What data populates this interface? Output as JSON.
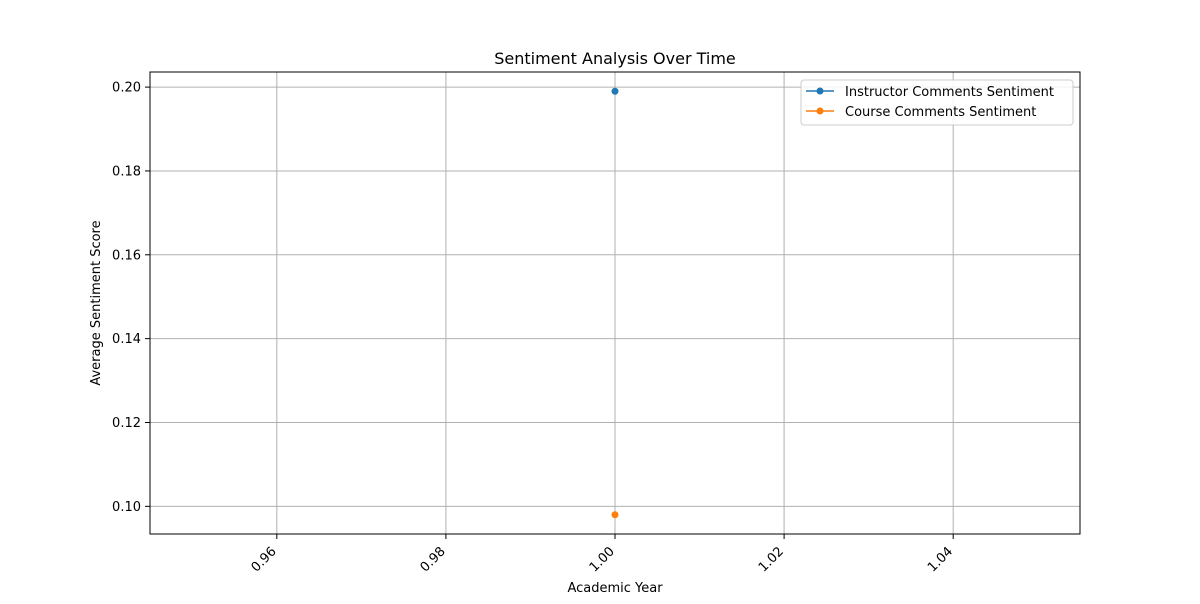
{
  "chart_data": {
    "type": "line",
    "title": "Sentiment Analysis Over Time",
    "xlabel": "Academic Year",
    "ylabel": "Average Sentiment Score",
    "xlim": [
      0.945,
      1.055
    ],
    "ylim": [
      0.0934,
      0.2036
    ],
    "x_ticks": [
      0.96,
      0.98,
      1.0,
      1.02,
      1.04
    ],
    "x_tick_labels": [
      "0.96",
      "0.98",
      "1.00",
      "1.02",
      "1.04"
    ],
    "y_ticks": [
      0.1,
      0.12,
      0.14,
      0.16,
      0.18,
      0.2
    ],
    "y_tick_labels": [
      "0.10",
      "0.12",
      "0.14",
      "0.16",
      "0.18",
      "0.20"
    ],
    "grid": true,
    "legend_position": "top-right",
    "series": [
      {
        "name": "Instructor Comments Sentiment",
        "color": "#1f77b4",
        "marker": "circle",
        "x": [
          1.0
        ],
        "y": [
          0.199
        ]
      },
      {
        "name": "Course Comments Sentiment",
        "color": "#ff7f0e",
        "marker": "circle",
        "x": [
          1.0
        ],
        "y": [
          0.098
        ]
      }
    ]
  }
}
